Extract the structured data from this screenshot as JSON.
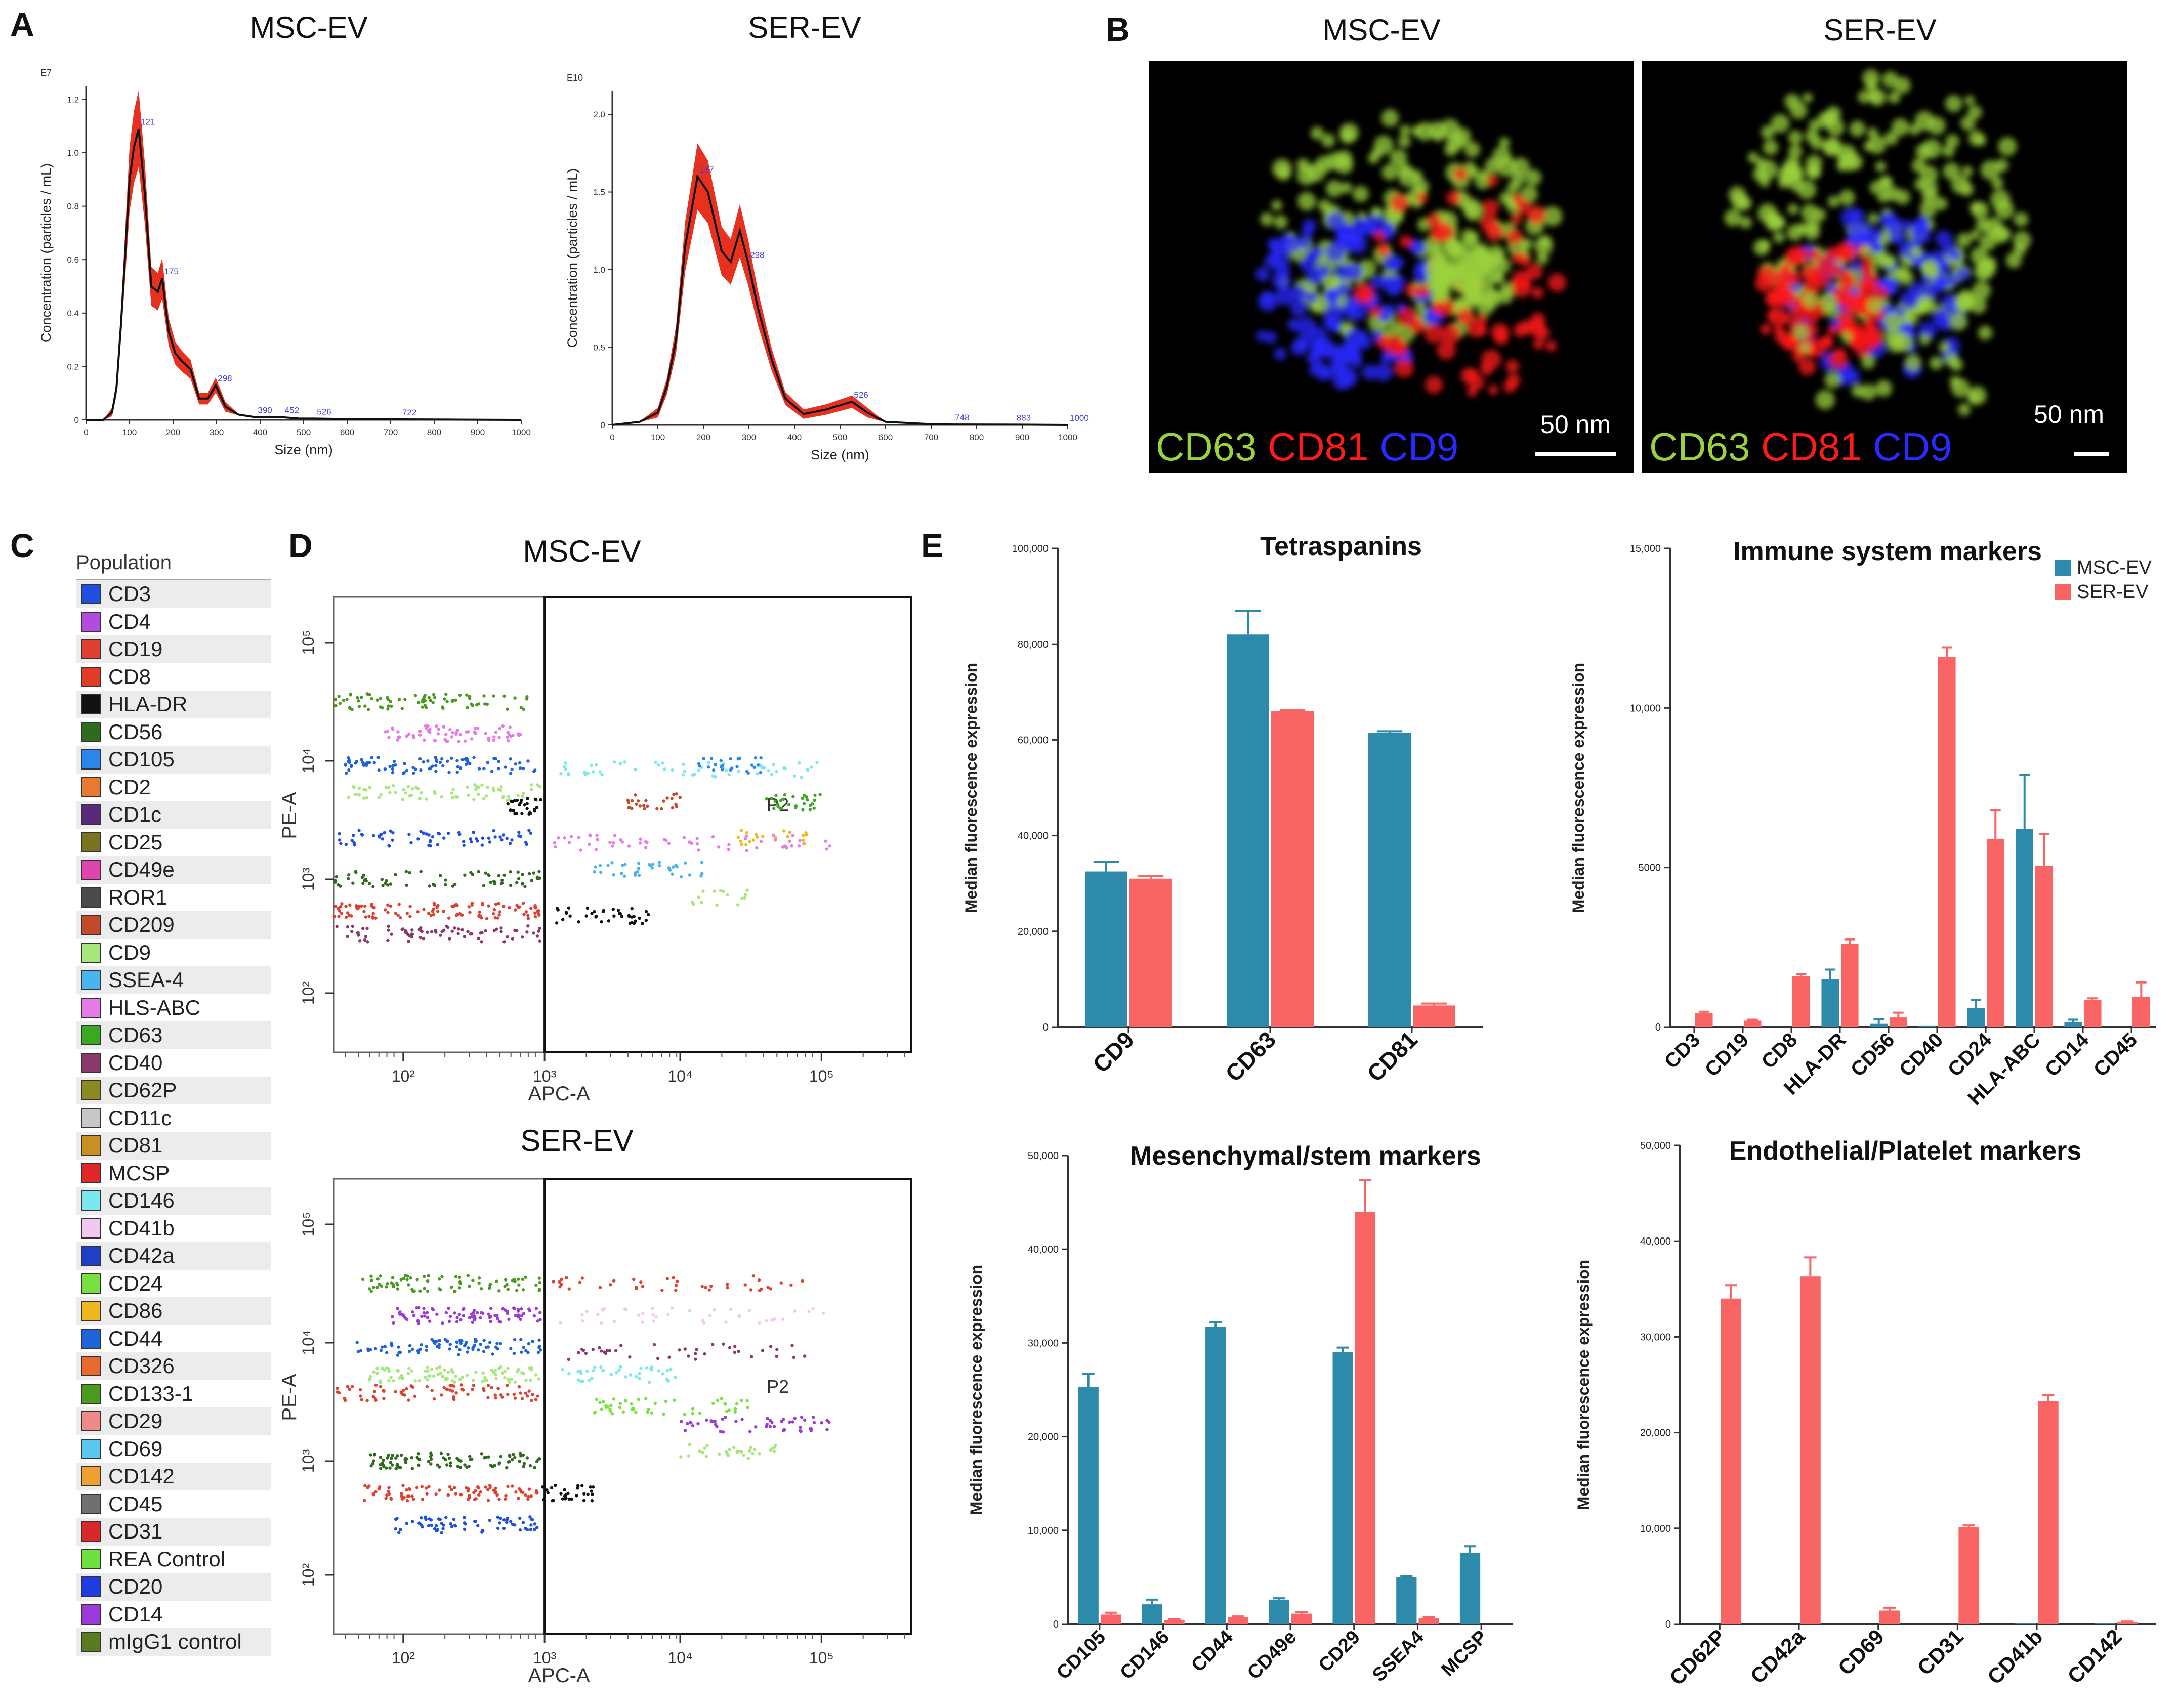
{
  "panels": {
    "A": "A",
    "B": "B",
    "C": "C",
    "D": "D",
    "E": "E"
  },
  "panelA": {
    "plots": [
      {
        "title": "MSC-EV",
        "exponent": "E7",
        "ylabel": "Concentration (particles / mL)",
        "xlabel": "Size (nm)",
        "yticks": [
          "0",
          "0.2",
          "0.4",
          "0.6",
          "0.8",
          "1.0",
          "1.2"
        ],
        "xticks": [
          "0",
          "100",
          "200",
          "300",
          "400",
          "500",
          "600",
          "700",
          "800",
          "900",
          "1000"
        ],
        "peaks": [
          "121",
          "175",
          "298",
          "390",
          "452",
          "526",
          "722"
        ]
      },
      {
        "title": "SER-EV",
        "exponent": "E10",
        "ylabel": "Concentration (particles / mL)",
        "xlabel": "Size (nm)",
        "yticks": [
          "0",
          "0.5",
          "1.0",
          "1.5",
          "2.0"
        ],
        "xticks": [
          "0",
          "100",
          "200",
          "300",
          "400",
          "500",
          "600",
          "700",
          "800",
          "900",
          "1000"
        ],
        "peaks": [
          "187",
          "298",
          "526",
          "748",
          "883",
          "1000"
        ]
      }
    ]
  },
  "panelB": {
    "images": [
      {
        "title": "MSC-EV",
        "scale": "50 nm",
        "markers": [
          "CD63",
          "CD81",
          "CD9"
        ]
      },
      {
        "title": "SER-EV",
        "scale": "50 nm",
        "markers": [
          "CD63",
          "CD81",
          "CD9"
        ]
      }
    ],
    "marker_colors": {
      "CD63": "#9bd23c",
      "CD81": "#ff1a1a",
      "CD9": "#2a2aff"
    }
  },
  "panelC": {
    "header": "Population",
    "items": [
      {
        "label": "CD3",
        "color": "#1f4fe0"
      },
      {
        "label": "CD4",
        "color": "#b44be0"
      },
      {
        "label": "CD19",
        "color": "#e04030"
      },
      {
        "label": "CD8",
        "color": "#e03c28"
      },
      {
        "label": "HLA-DR",
        "color": "#111111"
      },
      {
        "label": "CD56",
        "color": "#2e6b1e"
      },
      {
        "label": "CD105",
        "color": "#2a86ea"
      },
      {
        "label": "CD2",
        "color": "#e87a30"
      },
      {
        "label": "CD1c",
        "color": "#5a2a7a"
      },
      {
        "label": "CD25",
        "color": "#7a7420"
      },
      {
        "label": "CD49e",
        "color": "#e044b0"
      },
      {
        "label": "ROR1",
        "color": "#4a4a4a"
      },
      {
        "label": "CD209",
        "color": "#c24a2a"
      },
      {
        "label": "CD9",
        "color": "#a6e67a"
      },
      {
        "label": "SSEA-4",
        "color": "#4ab4ee"
      },
      {
        "label": "HLS-ABC",
        "color": "#e67ae6"
      },
      {
        "label": "CD63",
        "color": "#3aa820"
      },
      {
        "label": "CD40",
        "color": "#8a3a6a"
      },
      {
        "label": "CD62P",
        "color": "#8a8a20"
      },
      {
        "label": "CD11c",
        "color": "#c8c8c8"
      },
      {
        "label": "CD81",
        "color": "#c89020"
      },
      {
        "label": "MCSP",
        "color": "#e02828"
      },
      {
        "label": "CD146",
        "color": "#7ae8ec"
      },
      {
        "label": "CD41b",
        "color": "#f0c8f0"
      },
      {
        "label": "CD42a",
        "color": "#1e40c8"
      },
      {
        "label": "CD24",
        "color": "#7ae040"
      },
      {
        "label": "CD86",
        "color": "#f0b820"
      },
      {
        "label": "CD44",
        "color": "#1e64d8"
      },
      {
        "label": "CD326",
        "color": "#e86a30"
      },
      {
        "label": "CD133-1",
        "color": "#4a9a1e"
      },
      {
        "label": "CD29",
        "color": "#ee8a8a"
      },
      {
        "label": "CD69",
        "color": "#5ac8ee"
      },
      {
        "label": "CD142",
        "color": "#f0a030"
      },
      {
        "label": "CD45",
        "color": "#707070"
      },
      {
        "label": "CD31",
        "color": "#d82828"
      },
      {
        "label": "REA Control",
        "color": "#6ee040"
      },
      {
        "label": "CD20",
        "color": "#1e3ce0"
      },
      {
        "label": "CD14",
        "color": "#9a3ad8"
      },
      {
        "label": "mIgG1 control",
        "color": "#5a7a1e"
      }
    ]
  },
  "panelD": {
    "plots": [
      {
        "title": "MSC-EV",
        "ylabel": "PE-A",
        "xlabel": "APC-A",
        "gate": "P2",
        "xticks": [
          "10²",
          "10³",
          "10⁴",
          "10⁵"
        ],
        "yticks": [
          "10²",
          "10³",
          "10⁴",
          "10⁵"
        ]
      },
      {
        "title": "SER-EV",
        "ylabel": "PE-A",
        "xlabel": "APC-A",
        "gate": "P2",
        "xticks": [
          "10²",
          "10³",
          "10⁴",
          "10⁵"
        ],
        "yticks": [
          "10²",
          "10³",
          "10⁴",
          "10⁵"
        ]
      }
    ]
  },
  "colors": {
    "msc": "#2e8aab",
    "ser": "#f96464",
    "nta_fill": "#e8301e"
  },
  "chart_data": [
    {
      "type": "line",
      "title": "MSC-EV",
      "xlabel": "Size (nm)",
      "ylabel": "Concentration (particles / mL)",
      "ylim": [
        0,
        1.25
      ],
      "xlim": [
        0,
        1000
      ],
      "y_multiplier": "E7",
      "x": [
        0,
        40,
        60,
        70,
        80,
        90,
        100,
        110,
        121,
        135,
        150,
        165,
        175,
        190,
        205,
        220,
        240,
        260,
        280,
        298,
        320,
        350,
        390,
        420,
        452,
        490,
        526,
        600,
        722,
        850,
        1000
      ],
      "y": [
        0,
        0,
        0.03,
        0.12,
        0.35,
        0.62,
        0.9,
        1.02,
        1.09,
        0.85,
        0.5,
        0.48,
        0.53,
        0.33,
        0.25,
        0.22,
        0.19,
        0.08,
        0.08,
        0.13,
        0.05,
        0.02,
        0.01,
        0.01,
        0.01,
        0.005,
        0.005,
        0.003,
        0.002,
        0.001,
        0
      ]
    },
    {
      "type": "line",
      "title": "SER-EV",
      "xlabel": "Size (nm)",
      "ylabel": "Concentration (particles / mL)",
      "ylim": [
        0,
        2.15
      ],
      "xlim": [
        0,
        1000
      ],
      "y_multiplier": "E10",
      "x": [
        0,
        60,
        100,
        120,
        140,
        160,
        187,
        210,
        240,
        260,
        280,
        298,
        320,
        350,
        380,
        420,
        470,
        526,
        560,
        600,
        700,
        748,
        883,
        1000
      ],
      "y": [
        0,
        0.02,
        0.08,
        0.25,
        0.55,
        1.15,
        1.6,
        1.5,
        1.12,
        1.05,
        1.25,
        1.05,
        0.75,
        0.42,
        0.17,
        0.07,
        0.1,
        0.15,
        0.08,
        0.02,
        0.005,
        0.003,
        0.002,
        0
      ]
    },
    {
      "type": "bar",
      "title": "Tetraspanins",
      "ylabel": "Median fluorescence expression",
      "ylim": [
        0,
        100000
      ],
      "yticks": [
        "0",
        "20,000",
        "40,000",
        "60,000",
        "80,000",
        "100,000"
      ],
      "categories": [
        "CD9",
        "CD63",
        "CD81"
      ],
      "series": [
        {
          "name": "MSC-EV",
          "values": [
            32500,
            82000,
            61500
          ],
          "errors": [
            2000,
            5000,
            300
          ]
        },
        {
          "name": "SER-EV",
          "values": [
            31000,
            66000,
            4500
          ],
          "errors": [
            600,
            200,
            400
          ]
        }
      ]
    },
    {
      "type": "bar",
      "title": "Immune system markers",
      "ylabel": "Median fluorescence expression",
      "ylim": [
        0,
        15000
      ],
      "yticks": [
        "0",
        "5000",
        "10,000",
        "15,000"
      ],
      "categories": [
        "CD3",
        "CD19",
        "CD8",
        "HLA-DR",
        "CD56",
        "CD40",
        "CD24",
        "HLA-ABC",
        "CD14",
        "CD45"
      ],
      "series": [
        {
          "name": "MSC-EV",
          "values": [
            0,
            0,
            0,
            1500,
            100,
            50,
            600,
            6200,
            150,
            0
          ],
          "errors": [
            0,
            0,
            0,
            300,
            150,
            0,
            250,
            1700,
            80,
            0
          ]
        },
        {
          "name": "SER-EV",
          "values": [
            430,
            200,
            1600,
            2600,
            300,
            11600,
            5900,
            5050,
            850,
            950
          ],
          "errors": [
            50,
            30,
            50,
            150,
            150,
            300,
            900,
            1000,
            50,
            450
          ]
        }
      ],
      "legend": [
        "MSC-EV",
        "SER-EV"
      ],
      "legend_position": "top-right"
    },
    {
      "type": "bar",
      "title": "Mesenchymal/stem markers",
      "ylabel": "Median fluorescence expression",
      "ylim": [
        0,
        50000
      ],
      "yticks": [
        "0",
        "10,000",
        "20,000",
        "30,000",
        "40,000",
        "50,000"
      ],
      "categories": [
        "CD105",
        "CD146",
        "CD44",
        "CD49e",
        "CD29",
        "SSEA4",
        "MCSP"
      ],
      "series": [
        {
          "name": "MSC-EV",
          "values": [
            25300,
            2100,
            31700,
            2600,
            29000,
            5000,
            7600
          ],
          "errors": [
            1400,
            500,
            500,
            150,
            500,
            100,
            700
          ]
        },
        {
          "name": "SER-EV",
          "values": [
            1000,
            400,
            700,
            1100,
            44000,
            600,
            0
          ],
          "errors": [
            200,
            100,
            100,
            150,
            3400,
            100,
            0
          ]
        }
      ]
    },
    {
      "type": "bar",
      "title": "Endothelial/Platelet markers",
      "ylabel": "Median fluorescence expression",
      "ylim": [
        0,
        50000
      ],
      "yticks": [
        "0",
        "10,000",
        "20,000",
        "30,000",
        "40,000",
        "50,000"
      ],
      "categories": [
        "CD62P",
        "CD42a",
        "CD69",
        "CD31",
        "CD41b",
        "CD142"
      ],
      "series": [
        {
          "name": "MSC-EV",
          "values": [
            0,
            0,
            0,
            0,
            100,
            100
          ],
          "errors": [
            0,
            0,
            0,
            0,
            0,
            0
          ]
        },
        {
          "name": "SER-EV",
          "values": [
            34000,
            36300,
            1400,
            10100,
            23300,
            200
          ],
          "errors": [
            1400,
            2000,
            300,
            200,
            600,
            50
          ]
        }
      ]
    }
  ]
}
